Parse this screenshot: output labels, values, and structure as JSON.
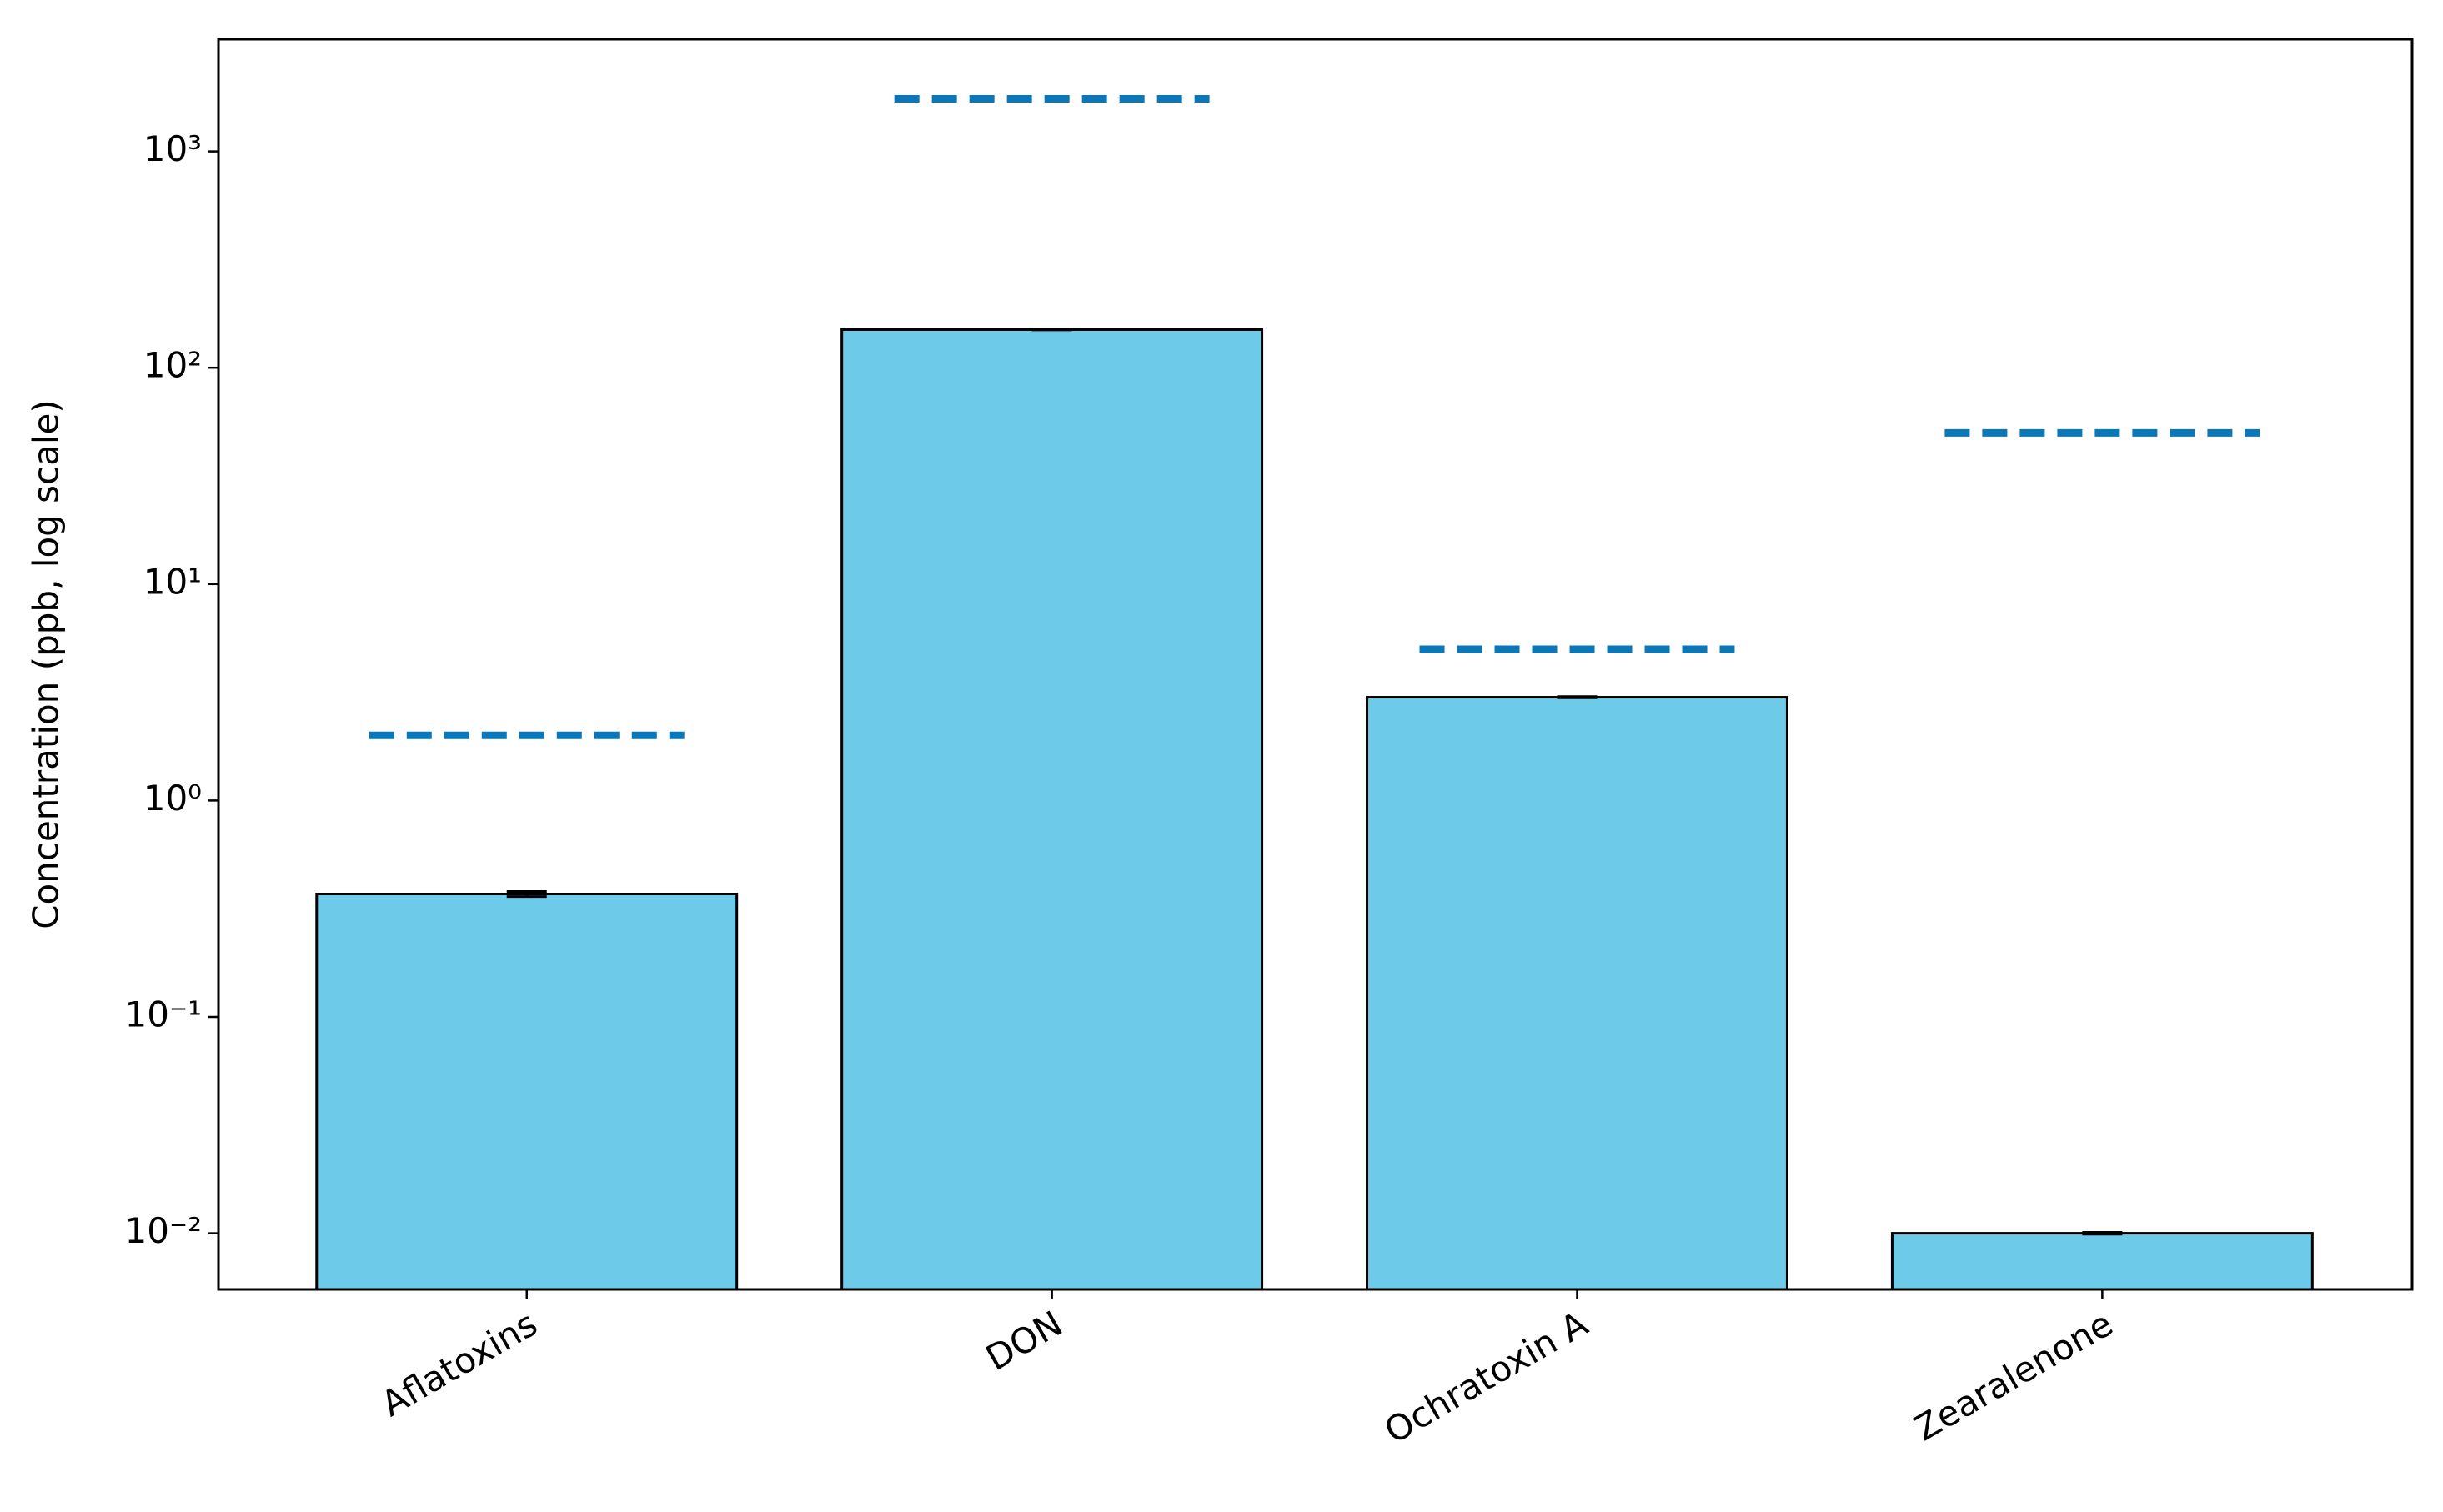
{
  "chart_data": {
    "type": "bar",
    "ylabel": "Concentration (ppb, log scale)",
    "categories": [
      "Aflatoxins",
      "DON",
      "Ochratoxin A",
      "Zearalenone"
    ],
    "values": [
      0.37,
      150,
      3.0,
      0.01
    ],
    "errors": [
      0.01,
      0.5,
      0.02,
      0.0001
    ],
    "limits": [
      2,
      1750,
      5,
      50
    ],
    "color": "#6ecae9",
    "limit_color": "#0a77b8",
    "log_y": true,
    "ylim": [
      0.0055,
      3300
    ],
    "yticks": [
      {
        "value": 0.01,
        "label": "10⁻²"
      },
      {
        "value": 0.1,
        "label": "10⁻¹"
      },
      {
        "value": 1,
        "label": "10⁰"
      },
      {
        "value": 10,
        "label": "10¹"
      },
      {
        "value": 100,
        "label": "10²"
      },
      {
        "value": 1000,
        "label": "10³"
      }
    ]
  }
}
